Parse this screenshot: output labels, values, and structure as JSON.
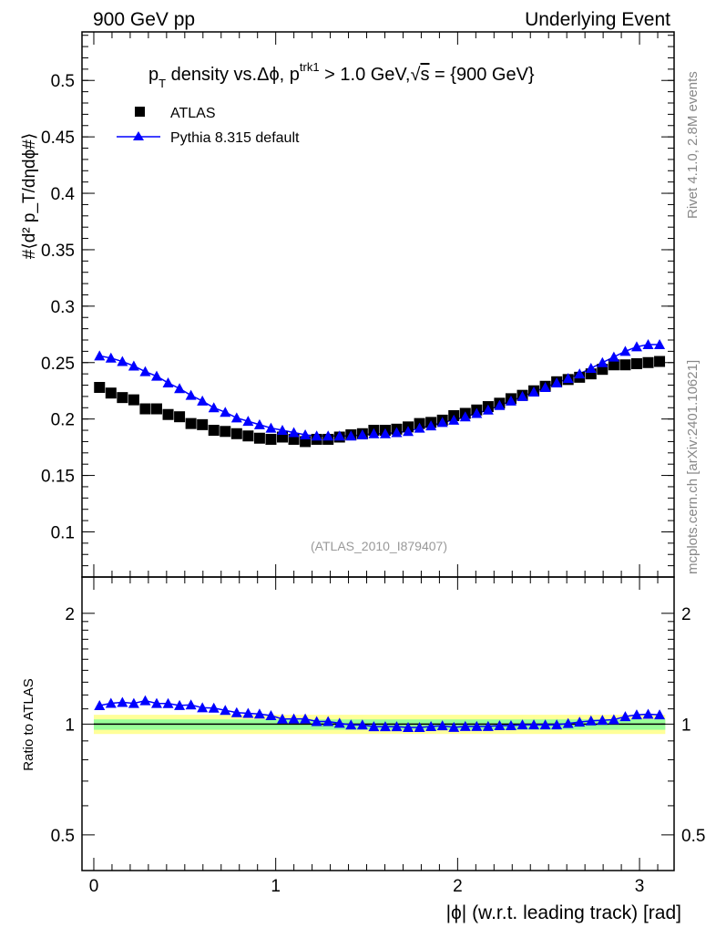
{
  "header": {
    "left": "900 GeV pp",
    "right": "Underlying Event"
  },
  "side_labels": {
    "rivet": "Rivet 4.1.0,  2.8M events",
    "mcplots": "mcplots.cern.ch [arXiv:2401.10621]"
  },
  "colors": {
    "atlas": "#000000",
    "pythia": "#0000ff",
    "band_outer": "#ffff99",
    "band_inner": "#99ff99"
  },
  "chart_data": [
    {
      "type": "scatter",
      "title_parts": {
        "pt": "p",
        "sub_T": "T",
        "mid": " density vs.Δϕ, p",
        "sup_trk1": "trk1",
        "rest": " > 1.0 GeV,",
        "sqrt": "√",
        "s": "s",
        "end": " = {900 GeV}"
      },
      "ylabel": "#⟨d² p_T/dηdϕ#⟩",
      "xlabel": "|ϕ| (w.r.t. leading track) [rad]",
      "watermark": "(ATLAS_2010_I879407)",
      "xlim": [
        -0.065,
        3.19
      ],
      "ylim": [
        0.06,
        0.543
      ],
      "yticks": [
        0.1,
        0.15,
        0.2,
        0.25,
        0.3,
        0.35,
        0.4,
        0.45,
        0.5
      ],
      "ytick_labels": [
        "0.1",
        "0.15",
        "0.2",
        "0.25",
        "0.3",
        "0.35",
        "0.4",
        "0.45",
        "0.5"
      ],
      "legend": [
        "ATLAS",
        "Pythia 8.315 default"
      ],
      "legend_position": "top-left",
      "n_bins": 50,
      "x_range": [
        0,
        3.14159
      ],
      "series": [
        {
          "name": "ATLAS",
          "marker": "square",
          "values": [
            0.228,
            0.223,
            0.219,
            0.217,
            0.209,
            0.209,
            0.204,
            0.202,
            0.196,
            0.195,
            0.19,
            0.189,
            0.187,
            0.185,
            0.183,
            0.182,
            0.184,
            0.182,
            0.18,
            0.182,
            0.182,
            0.184,
            0.186,
            0.187,
            0.19,
            0.19,
            0.191,
            0.193,
            0.196,
            0.197,
            0.199,
            0.203,
            0.205,
            0.208,
            0.211,
            0.214,
            0.218,
            0.221,
            0.225,
            0.229,
            0.233,
            0.235,
            0.237,
            0.24,
            0.244,
            0.248,
            0.248,
            0.249,
            0.25,
            0.251
          ]
        },
        {
          "name": "Pythia 8.315 default",
          "marker": "triangle",
          "values": [
            0.256,
            0.254,
            0.251,
            0.247,
            0.242,
            0.238,
            0.232,
            0.227,
            0.221,
            0.216,
            0.21,
            0.206,
            0.201,
            0.198,
            0.195,
            0.192,
            0.19,
            0.188,
            0.186,
            0.185,
            0.185,
            0.185,
            0.185,
            0.186,
            0.187,
            0.187,
            0.188,
            0.189,
            0.192,
            0.194,
            0.197,
            0.199,
            0.202,
            0.205,
            0.208,
            0.212,
            0.216,
            0.22,
            0.224,
            0.228,
            0.232,
            0.236,
            0.24,
            0.245,
            0.25,
            0.255,
            0.26,
            0.264,
            0.266,
            0.266
          ]
        }
      ]
    },
    {
      "type": "line",
      "ylabel": "Ratio to ATLAS",
      "yscale": "log",
      "ylim": [
        0.4,
        2.51
      ],
      "yticks": [
        0.5,
        1,
        2
      ],
      "ytick_labels": [
        "0.5",
        "1",
        "2"
      ],
      "xticks": [
        0,
        1,
        2,
        3
      ],
      "xtick_labels": [
        "0",
        "1",
        "2",
        "3"
      ],
      "band_outer": [
        0.94,
        1.06
      ],
      "band_inner": [
        0.965,
        1.03
      ],
      "series_name": "Pythia 8.315 default / ATLAS"
    }
  ]
}
